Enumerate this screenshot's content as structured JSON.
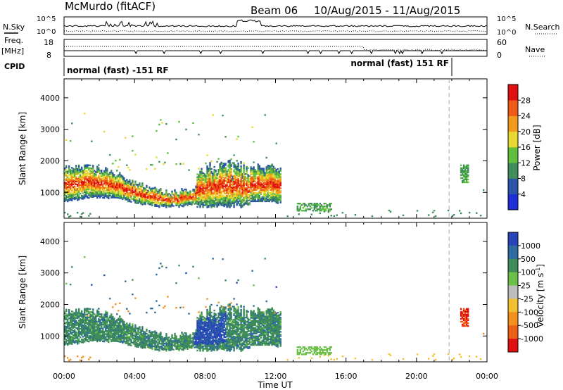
{
  "header": {
    "title": "McMurdo (fitACF)",
    "beam": "Beam 06",
    "dates": "10/Aug/2015 - 11/Aug/2015"
  },
  "chart_data": [
    {
      "type": "line",
      "title": "",
      "ylabel_left": "N.Sky",
      "ylabel_right": "N.Search",
      "left_ticks": [
        "10^5",
        "10^0"
      ],
      "right_ticks": [
        "10^5",
        "10^0"
      ],
      "series": [
        {
          "name": "N.Sky",
          "style": "solid"
        },
        {
          "name": "N.Search",
          "style": "dotted"
        }
      ]
    },
    {
      "type": "line",
      "title": "",
      "ylabel_left_top": "Freq.",
      "ylabel_left_bottom": "[MHz]",
      "ylabel_right": "Nave",
      "left_ticks": [
        "18",
        "8"
      ],
      "right_ticks": [
        "60",
        "0"
      ],
      "series": [
        {
          "name": "Freq.",
          "style": "solid"
        },
        {
          "name": "Nave",
          "style": "dotted"
        }
      ]
    },
    {
      "type": "table",
      "label": "CPID",
      "segments": [
        {
          "start": 1.0,
          "end": 22.0,
          "text": "normal (fast) -151 RF"
        },
        {
          "start": 22.0,
          "end": 24.0,
          "text": "normal (fast) 151 RF"
        }
      ]
    },
    {
      "type": "heatmap",
      "quantity": "power",
      "ylabel": "Slant Range [km]",
      "yticks": [
        1000,
        2000,
        3000,
        4000
      ],
      "ylim": [
        180,
        4600
      ],
      "xlim": [
        0,
        24
      ],
      "colorbar": {
        "label": "Power [dB]",
        "ticks": [
          "4",
          "8",
          "12",
          "16",
          "20",
          "24",
          "28"
        ],
        "colors": [
          "#1f2fd8",
          "#2b55a8",
          "#3f8c5c",
          "#5fbf3f",
          "#e8d832",
          "#f29a1e",
          "#ee5a18",
          "#e01010"
        ]
      }
    },
    {
      "type": "heatmap",
      "quantity": "velocity",
      "ylabel": "Slant Range [km]",
      "yticks": [
        1000,
        2000,
        3000,
        4000
      ],
      "ylim": [
        180,
        4600
      ],
      "xlim": [
        0,
        24
      ],
      "xlabel": "Time UT",
      "xticks": [
        "00:00",
        "04:00",
        "08:00",
        "12:00",
        "16:00",
        "20:00",
        "00:00"
      ],
      "colorbar": {
        "label_main": "Velocity",
        "label_unit": "[m s",
        "label_exp": "-1",
        "label_close": "]",
        "ticks": [
          "1000",
          "500",
          "100",
          "25",
          "-25",
          "-100",
          "-500",
          "-1000"
        ],
        "colors": [
          "#2846b8",
          "#2f6aa0",
          "#3e8c5a",
          "#6cc04a",
          "#bdbdbd",
          "#f0c030",
          "#f29020",
          "#ee6018",
          "#e01010"
        ]
      }
    }
  ],
  "marker_time": 21.85
}
